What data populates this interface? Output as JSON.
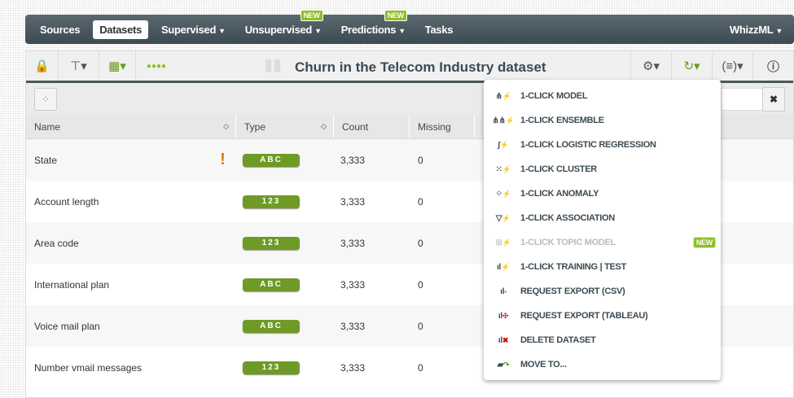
{
  "nav": {
    "items": [
      {
        "label": "Sources"
      },
      {
        "label": "Datasets",
        "active": true
      },
      {
        "label": "Supervised",
        "caret": true
      },
      {
        "label": "Unsupervised",
        "caret": true,
        "badge": "NEW"
      },
      {
        "label": "Predictions",
        "caret": true,
        "badge": "NEW"
      },
      {
        "label": "Tasks"
      }
    ],
    "right": "WhizzML"
  },
  "toolbar": {
    "title": "Churn in the Telecom Industry dataset",
    "icons": [
      "lock-icon",
      "tree-icon",
      "fields-icon",
      "status-dots-icon",
      "settings-icon",
      "one-click-icon",
      "formula-icon",
      "info-icon"
    ]
  },
  "table": {
    "headers": [
      "Name",
      "Type",
      "Count",
      "Missing"
    ],
    "rows": [
      {
        "name": "State",
        "warning": "!",
        "type": "ABC",
        "count": "3,333",
        "missing": "0"
      },
      {
        "name": "Account length",
        "type": "123",
        "count": "3,333",
        "missing": "0"
      },
      {
        "name": "Area code",
        "type": "123",
        "count": "3,333",
        "missing": "0"
      },
      {
        "name": "International plan",
        "type": "ABC",
        "count": "3,333",
        "missing": "0"
      },
      {
        "name": "Voice mail plan",
        "type": "ABC",
        "count": "3,333",
        "missing": "0"
      },
      {
        "name": "Number vmail messages",
        "type": "123",
        "count": "3,333",
        "missing": "0"
      }
    ]
  },
  "search": {
    "clear": "✖"
  },
  "menu": {
    "items": [
      {
        "label": "1-CLICK MODEL"
      },
      {
        "label": "1-CLICK ENSEMBLE"
      },
      {
        "label": "1-CLICK LOGISTIC REGRESSION"
      },
      {
        "label": "1-CLICK CLUSTER"
      },
      {
        "label": "1-CLICK ANOMALY"
      },
      {
        "label": "1-CLICK ASSOCIATION"
      },
      {
        "label": "1-CLICK TOPIC MODEL",
        "disabled": true,
        "badge": "NEW"
      },
      {
        "label": "1-CLICK TRAINING | TEST"
      },
      {
        "label": "REQUEST EXPORT (CSV)"
      },
      {
        "label": "REQUEST EXPORT (TABLEAU)"
      },
      {
        "label": "DELETE DATASET"
      },
      {
        "label": "MOVE TO..."
      }
    ]
  },
  "colors": {
    "accent": "#8cbf26",
    "badge": "#6f9a25",
    "nav": "#4a575e",
    "warning": "#e07a10"
  }
}
